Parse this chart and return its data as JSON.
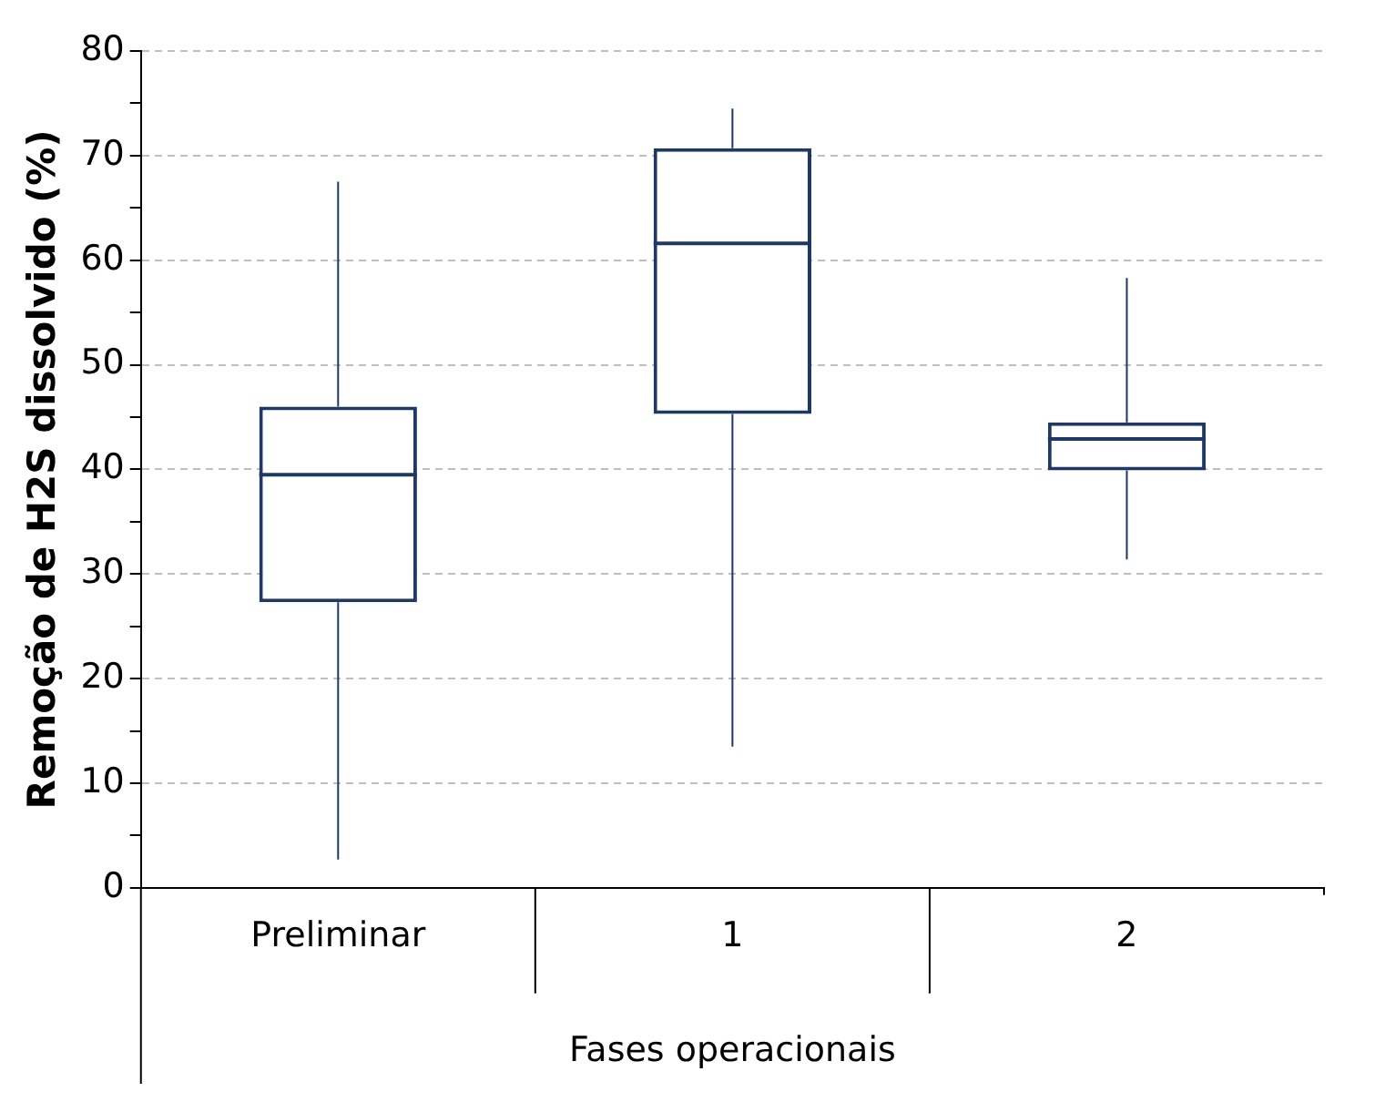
{
  "chart_data": {
    "type": "box",
    "ylabel": "Remoção de H2S dissolvido (%)",
    "xlabel": "Fases operacionais",
    "categories": [
      "Preliminar",
      "1",
      "2"
    ],
    "boxes": [
      {
        "low": 2.7,
        "q1": 27.3,
        "median": 39.5,
        "q3": 46.0,
        "high": 67.5
      },
      {
        "low": 13.5,
        "q1": 45.3,
        "median": 61.6,
        "q3": 70.7,
        "high": 74.5
      },
      {
        "low": 31.4,
        "q1": 39.9,
        "median": 42.9,
        "q3": 44.5,
        "high": 58.3
      }
    ],
    "color": "#1f3864",
    "ylim": [
      0,
      80
    ],
    "yticks": [
      0,
      {
        "value": 5,
        "label": null
      },
      10,
      {
        "value": 15,
        "label": null
      },
      20,
      {
        "value": 25,
        "label": null
      },
      30,
      {
        "value": 35,
        "label": null
      },
      40,
      {
        "value": 45,
        "label": null
      },
      50,
      {
        "value": 55,
        "label": null
      },
      60,
      {
        "value": 65,
        "label": null
      },
      70,
      {
        "value": 75,
        "label": null
      },
      80
    ],
    "grid": "y",
    "legend": false
  }
}
